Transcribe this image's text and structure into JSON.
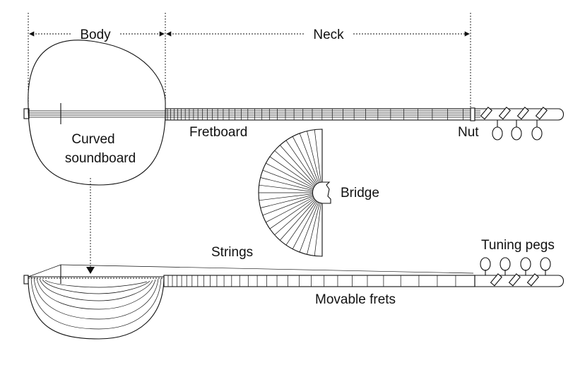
{
  "diagram": {
    "labels": {
      "body": "Body",
      "neck": "Neck",
      "curved_line1": "Curved",
      "curved_line2": "soundboard",
      "fretboard": "Fretboard",
      "nut": "Nut",
      "bridge": "Bridge",
      "strings": "Strings",
      "tuning_pegs": "Tuning pegs",
      "movable_frets": "Movable frets"
    }
  }
}
